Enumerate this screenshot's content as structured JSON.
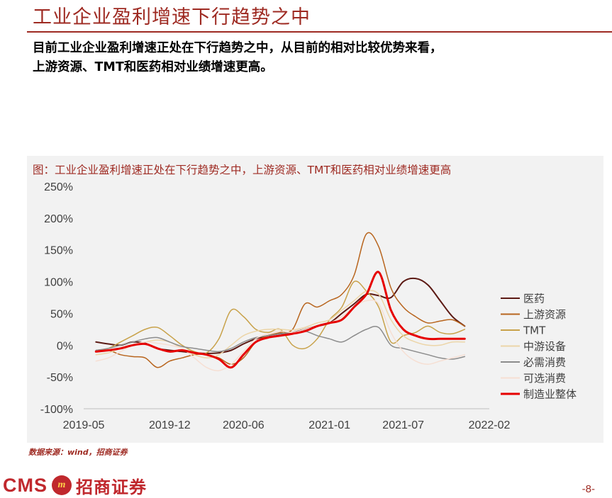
{
  "header": {
    "title": "工业企业盈利增速下行趋势之中",
    "body_line1": "目前工业企业盈利增速正处在下行趋势之中，从目前的相对比较优势来看，",
    "body_line2": "上游资源、TMT和医药相对业绩增速更高。"
  },
  "footer": {
    "source": "数据来源：wind，招商证券",
    "logo_latin": "CMS",
    "logo_mark": "m",
    "logo_cn": "招商证券",
    "page_number": "-8-"
  },
  "chart_data": {
    "type": "line",
    "title": "图：工业企业盈利增速正处在下行趋势之中，上游资源、TMT和医药相对业绩增速更高",
    "xlabel": "",
    "ylabel": "",
    "ylim": [
      -100,
      250
    ],
    "yticks": [
      -100,
      -50,
      0,
      50,
      100,
      150,
      200,
      250
    ],
    "ytick_labels": [
      "-100%",
      "-50%",
      "0%",
      "50%",
      "100%",
      "150%",
      "200%",
      "250%"
    ],
    "xtick_labels": [
      "2019-05",
      "2019-12",
      "2020-06",
      "2021-01",
      "2021-07",
      "2022-02"
    ],
    "xtick_months": [
      0,
      7,
      13,
      20,
      26,
      33
    ],
    "x_months": [
      1,
      2,
      3,
      4,
      5,
      6,
      7,
      8,
      9,
      10,
      11,
      12,
      13,
      14,
      15,
      16,
      17,
      18,
      19,
      20,
      21,
      22,
      23,
      24,
      25,
      26,
      27,
      28,
      29,
      30,
      31
    ],
    "grid": false,
    "legend_position": "right",
    "series": [
      {
        "name": "医药",
        "color": "#5c1a14",
        "width": 2,
        "values": [
          5,
          2,
          0,
          5,
          3,
          -5,
          -8,
          -10,
          -12,
          -13,
          -12,
          -8,
          2,
          10,
          15,
          18,
          20,
          25,
          30,
          35,
          50,
          65,
          80,
          78,
          75,
          100,
          105,
          95,
          70,
          45,
          30
        ]
      },
      {
        "name": "上游资源",
        "color": "#b8651e",
        "width": 1.5,
        "values": [
          -10,
          -8,
          -15,
          -18,
          -20,
          -35,
          -25,
          -20,
          -15,
          -15,
          -20,
          -30,
          -20,
          5,
          15,
          20,
          25,
          65,
          60,
          70,
          80,
          110,
          175,
          155,
          90,
          60,
          45,
          35,
          38,
          40,
          30
        ]
      },
      {
        "name": "TMT",
        "color": "#c8a24a",
        "width": 1.5,
        "values": [
          -8,
          -5,
          5,
          15,
          25,
          28,
          15,
          0,
          -10,
          -12,
          10,
          55,
          45,
          25,
          20,
          25,
          0,
          -5,
          10,
          40,
          60,
          100,
          85,
          60,
          5,
          15,
          20,
          30,
          20,
          18,
          25
        ]
      },
      {
        "name": "中游设备",
        "color": "#ecd5a8",
        "width": 1.5,
        "values": [
          -15,
          -12,
          -5,
          0,
          5,
          8,
          5,
          -5,
          -15,
          -20,
          -15,
          0,
          15,
          22,
          25,
          25,
          24,
          28,
          35,
          40,
          55,
          70,
          85,
          80,
          40,
          15,
          5,
          0,
          0,
          5,
          5
        ]
      },
      {
        "name": "必需消费",
        "color": "#8c8c8c",
        "width": 1.5,
        "values": [
          -8,
          -5,
          0,
          5,
          10,
          12,
          5,
          -2,
          -5,
          -8,
          -10,
          -5,
          5,
          12,
          15,
          18,
          20,
          22,
          15,
          10,
          5,
          15,
          25,
          28,
          0,
          -5,
          -10,
          -15,
          -20,
          -22,
          -18
        ]
      },
      {
        "name": "可选消费",
        "color": "#f6dfd3",
        "width": 1.5,
        "values": [
          -25,
          -20,
          -10,
          0,
          5,
          3,
          0,
          -5,
          -20,
          -35,
          -40,
          -30,
          -10,
          10,
          18,
          22,
          20,
          25,
          30,
          35,
          45,
          60,
          70,
          65,
          20,
          -10,
          -25,
          -30,
          -25,
          -20,
          -15
        ]
      },
      {
        "name": "制造业整体",
        "color": "#e60000",
        "width": 3,
        "values": [
          -10,
          -8,
          -5,
          0,
          2,
          -5,
          -10,
          -8,
          -12,
          -15,
          -22,
          -35,
          -15,
          5,
          12,
          15,
          18,
          22,
          30,
          35,
          40,
          60,
          80,
          115,
          55,
          25,
          15,
          10,
          10,
          10,
          10
        ]
      }
    ]
  }
}
